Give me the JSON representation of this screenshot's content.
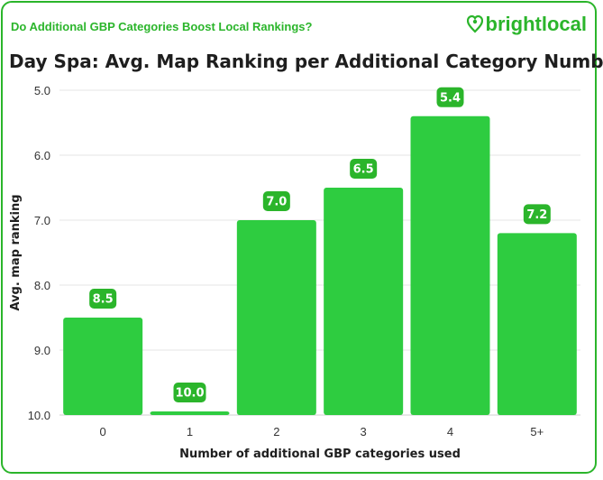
{
  "header": {
    "banner": "Do Additional GBP Categories Boost Local Rankings?",
    "brand": "brightlocal",
    "brand_icon": "heart-pin-icon"
  },
  "colors": {
    "accent": "#2bb52b",
    "bar": "#2ecc40",
    "label_bg": "#2bb52b"
  },
  "chart_data": {
    "type": "bar",
    "title": "Day Spa: Avg. Map Ranking per Additional Category Number",
    "xlabel": "Number of additional GBP categories used",
    "ylabel": "Avg. map ranking",
    "categories": [
      "0",
      "1",
      "2",
      "3",
      "4",
      "5+"
    ],
    "values": [
      8.5,
      10.0,
      7.0,
      6.5,
      5.4,
      7.2
    ],
    "value_labels": [
      "8.5",
      "10.0",
      "7.0",
      "6.5",
      "5.4",
      "7.2"
    ],
    "ylim": [
      5.0,
      10.0
    ],
    "y_inverted": true,
    "y_ticks": [
      "5.0",
      "6.0",
      "7.0",
      "8.0",
      "9.0",
      "10.0"
    ],
    "grid": true,
    "legend": "none"
  }
}
